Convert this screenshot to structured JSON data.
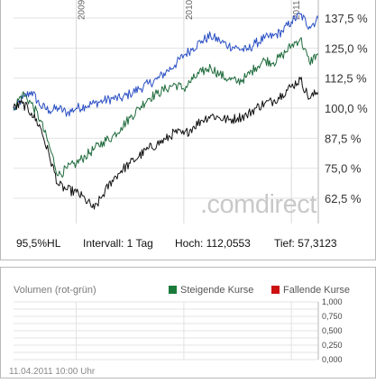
{
  "chart_data": {
    "type": "line",
    "period_labels": [
      "2009",
      "2010",
      "2011"
    ],
    "y_ticks": [
      "137,5 %",
      "125,0 %",
      "112,5 %",
      "100,0 %",
      "87,5 %",
      "75,0 %",
      "62,5 %"
    ],
    "y_tick_values": [
      137.5,
      125.0,
      112.5,
      100.0,
      87.5,
      75.0,
      62.5
    ],
    "ylim": [
      52.0,
      145.0
    ],
    "x_range": [
      "2008-06",
      "2011-04"
    ],
    "grid": true,
    "watermark": ".comdirect",
    "series": [
      {
        "color": "#2a4fc4",
        "x": [
          "2008-06",
          "2008-07",
          "2008-08",
          "2008-09",
          "2008-10",
          "2008-11",
          "2008-12",
          "2009-01",
          "2009-02",
          "2009-03",
          "2009-04",
          "2009-05",
          "2009-06",
          "2009-07",
          "2009-08",
          "2009-09",
          "2009-10",
          "2009-11",
          "2009-12",
          "2010-01",
          "2010-02",
          "2010-03",
          "2010-04",
          "2010-05",
          "2010-06",
          "2010-07",
          "2010-08",
          "2010-09",
          "2010-10",
          "2010-11",
          "2010-12",
          "2011-01",
          "2011-02",
          "2011-03",
          "2011-04"
        ],
        "values": [
          99,
          104,
          107,
          101,
          99,
          100,
          98,
          100,
          101,
          102,
          103,
          104,
          104,
          106,
          108,
          110,
          112,
          115,
          118,
          122,
          125,
          128,
          130,
          128,
          126,
          125,
          124,
          127,
          129,
          130,
          132,
          136,
          139,
          134,
          137
        ]
      },
      {
        "color": "#1f6b3d",
        "x": [
          "2008-06",
          "2008-07",
          "2008-08",
          "2008-09",
          "2008-10",
          "2008-11",
          "2008-12",
          "2009-01",
          "2009-02",
          "2009-03",
          "2009-04",
          "2009-05",
          "2009-06",
          "2009-07",
          "2009-08",
          "2009-09",
          "2009-10",
          "2009-11",
          "2009-12",
          "2010-01",
          "2010-02",
          "2010-03",
          "2010-04",
          "2010-05",
          "2010-06",
          "2010-07",
          "2010-08",
          "2010-09",
          "2010-10",
          "2010-11",
          "2010-12",
          "2011-01",
          "2011-02",
          "2011-03",
          "2011-04"
        ],
        "values": [
          100,
          106,
          102,
          95,
          84,
          72,
          75,
          77,
          80,
          83,
          86,
          88,
          92,
          96,
          100,
          104,
          106,
          108,
          110,
          108,
          112,
          115,
          117,
          114,
          112,
          111,
          113,
          117,
          120,
          119,
          122,
          126,
          129,
          119,
          123
        ]
      },
      {
        "color": "#111111",
        "x": [
          "2008-06",
          "2008-07",
          "2008-08",
          "2008-09",
          "2008-10",
          "2008-11",
          "2008-12",
          "2009-01",
          "2009-02",
          "2009-03",
          "2009-04",
          "2009-05",
          "2009-06",
          "2009-07",
          "2009-08",
          "2009-09",
          "2009-10",
          "2009-11",
          "2009-12",
          "2010-01",
          "2010-02",
          "2010-03",
          "2010-04",
          "2010-05",
          "2010-06",
          "2010-07",
          "2010-08",
          "2010-09",
          "2010-10",
          "2010-11",
          "2010-12",
          "2011-01",
          "2011-02",
          "2011-03",
          "2011-04"
        ],
        "values": [
          100,
          102,
          98,
          92,
          80,
          68,
          66,
          65,
          62,
          58,
          64,
          70,
          74,
          77,
          80,
          83,
          85,
          87,
          90,
          89,
          92,
          95,
          97,
          96,
          95,
          96,
          97,
          100,
          102,
          103,
          106,
          109,
          112,
          104,
          107
        ]
      }
    ]
  },
  "stats": {
    "level": "95,5%HL",
    "interval": "Intervall: 1 Tag",
    "high": "Hoch: 112,0553",
    "low": "Tief: 57,3123"
  },
  "volume": {
    "title": "Volumen (rot-grün)",
    "legend_up": "Steigende Kurse",
    "legend_down": "Fallende Kurse",
    "color_up": "#1a7a3a",
    "color_down": "#cc1111",
    "y_ticks": [
      "1,000",
      "0,750",
      "0,500",
      "0,250",
      "0,000"
    ],
    "y_tick_values": [
      1.0,
      0.75,
      0.5,
      0.25,
      0.0
    ],
    "ylim": [
      0.0,
      1.0
    ]
  },
  "timestamp": "11.04.2011 10:00 Uhr"
}
